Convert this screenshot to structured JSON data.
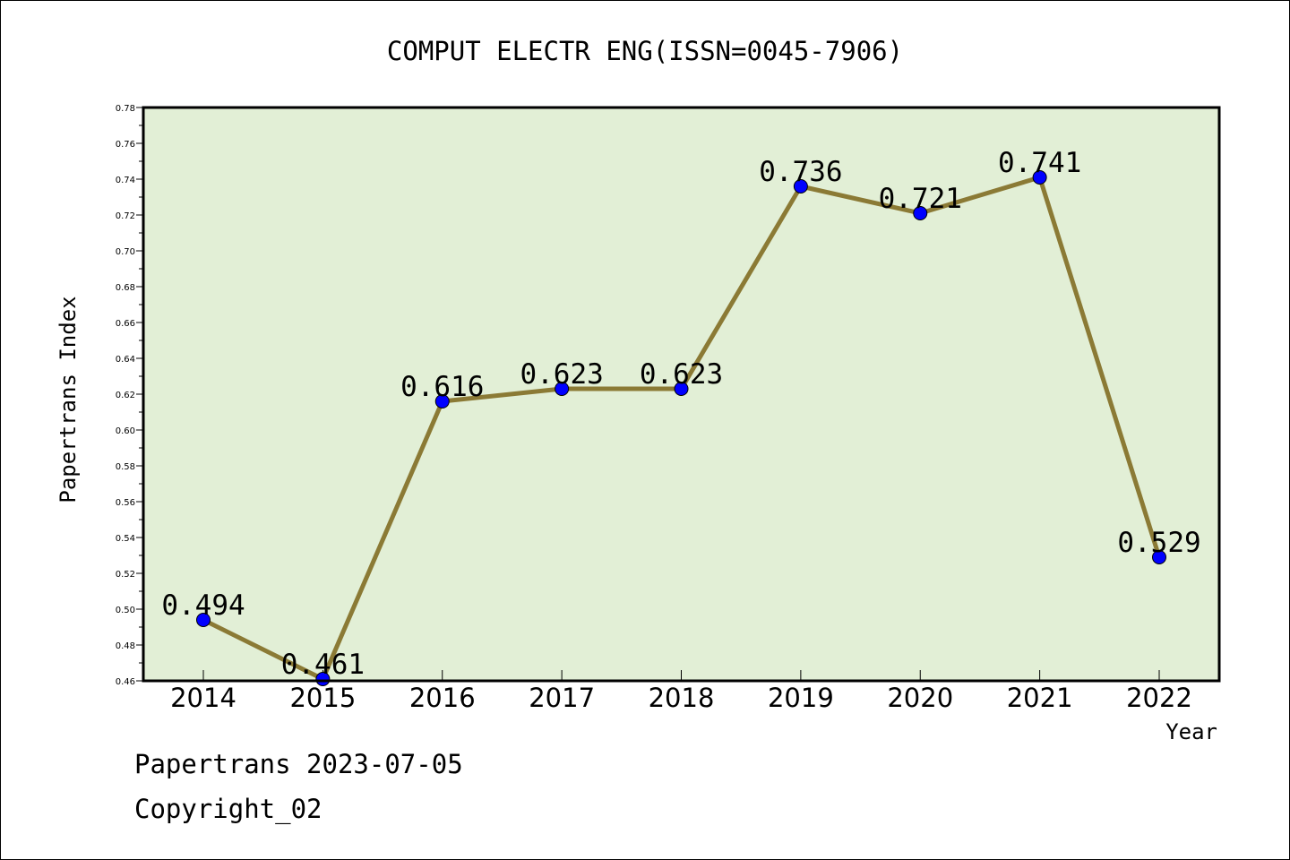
{
  "chart_data": {
    "type": "line",
    "title": "COMPUT ELECTR ENG(ISSN=0045-7906)",
    "xlabel": "Year",
    "ylabel": "Papertrans Index",
    "categories": [
      "2014",
      "2015",
      "2016",
      "2017",
      "2018",
      "2019",
      "2020",
      "2021",
      "2022"
    ],
    "values": [
      0.494,
      0.461,
      0.616,
      0.623,
      0.623,
      0.736,
      0.721,
      0.741,
      0.529
    ],
    "data_labels": [
      "0.494",
      "0.461",
      "0.616",
      "0.623",
      "0.623",
      "0.736",
      "0.721",
      "0.741",
      "0.529"
    ],
    "ylim": [
      0.46,
      0.78
    ],
    "yticks": [
      "0.46",
      "0.48",
      "0.50",
      "0.52",
      "0.54",
      "0.56",
      "0.58",
      "0.60",
      "0.62",
      "0.64",
      "0.66",
      "0.68",
      "0.70",
      "0.72",
      "0.74",
      "0.76",
      "0.78"
    ],
    "grid": false,
    "legend": "none",
    "colors": {
      "plot_background": "#e2efd6",
      "line": "#8b7a35",
      "marker": "#0000ff",
      "axis": "#000000"
    }
  },
  "footer": {
    "line1": "Papertrans 2023-07-05",
    "line2": "Copyright_02"
  }
}
